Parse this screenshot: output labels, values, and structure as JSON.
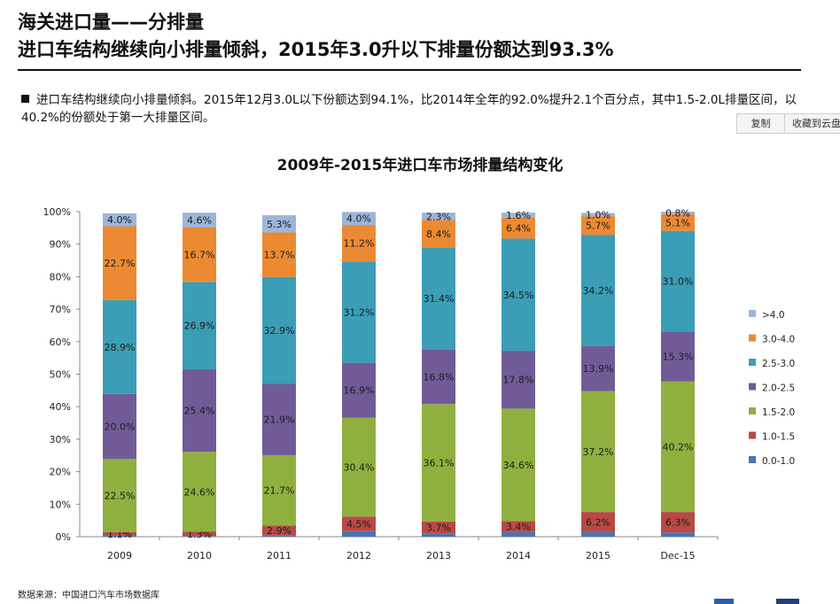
{
  "header": {
    "title_line1": "海关进口量——分排量",
    "title_line2": "进口车结构继续向小排量倾斜，2015年3.0升以下排量份额达到93.3%"
  },
  "bullet": {
    "text": "进口车结构继续向小排量倾斜。2015年12月3.0L以下份额达到94.1%，比2014年全年的92.0%提升2.1个百分点，其中1.5-2.0L排量区间，以40.2%的份额处于第一大排量区间。"
  },
  "buttons": {
    "copy": "复制",
    "favorite": "收藏到云盘"
  },
  "source": "数据来源：中国进口汽车市场数据库",
  "colors": {
    "0.0-1.0": "#4a74b4",
    "1.0-1.5": "#b94945",
    "1.5-2.0": "#8fb03f",
    "2.0-2.5": "#715b97",
    "2.5-3.0": "#3b9db6",
    "3.0-4.0": "#ec8a33",
    ">4.0": "#9cb6d9"
  },
  "chart_data": {
    "type": "bar",
    "stacked": true,
    "title": "2009年-2015年进口车市场排量结构变化",
    "categories": [
      "2009",
      "2010",
      "2011",
      "2012",
      "2013",
      "2014",
      "2015",
      "Dec-15"
    ],
    "yticks": [
      "0%",
      "10%",
      "20%",
      "30%",
      "40%",
      "50%",
      "60%",
      "70%",
      "80%",
      "90%",
      "100%"
    ],
    "ylim": [
      0,
      100
    ],
    "legend_position": "right",
    "series": [
      {
        "name": "0.0-1.0",
        "values": [
          0.3,
          0.2,
          0.5,
          1.7,
          1.0,
          1.4,
          1.4,
          1.3
        ],
        "labels": [
          "",
          "",
          "",
          "",
          "",
          "",
          "",
          ""
        ]
      },
      {
        "name": "1.0-1.5",
        "values": [
          1.1,
          1.3,
          2.9,
          4.5,
          3.7,
          3.4,
          6.2,
          6.3
        ],
        "labels": [
          "1.1%",
          "1.3%",
          "2.9%",
          "4.5%",
          "3.7%",
          "3.4%",
          "6.2%",
          "6.3%"
        ]
      },
      {
        "name": "1.5-2.0",
        "values": [
          22.5,
          24.6,
          21.7,
          30.4,
          36.1,
          34.6,
          37.2,
          40.2
        ],
        "labels": [
          "22.5%",
          "24.6%",
          "21.7%",
          "30.4%",
          "36.1%",
          "34.6%",
          "37.2%",
          "40.2%"
        ]
      },
      {
        "name": "2.0-2.5",
        "values": [
          20.0,
          25.4,
          21.9,
          16.9,
          16.8,
          17.8,
          13.9,
          15.3
        ],
        "labels": [
          "20.0%",
          "25.4%",
          "21.9%",
          "16.9%",
          "16.8%",
          "17.8%",
          "13.9%",
          "15.3%"
        ]
      },
      {
        "name": "2.5-3.0",
        "values": [
          28.9,
          26.9,
          32.9,
          31.2,
          31.4,
          34.5,
          34.2,
          31.0
        ],
        "labels": [
          "28.9%",
          "26.9%",
          "32.9%",
          "31.2%",
          "31.4%",
          "34.5%",
          "34.2%",
          "31.0%"
        ]
      },
      {
        "name": "3.0-4.0",
        "values": [
          22.7,
          16.7,
          13.7,
          11.2,
          8.4,
          6.4,
          5.7,
          5.1
        ],
        "labels": [
          "22.7%",
          "16.7%",
          "13.7%",
          "11.2%",
          "8.4%",
          "6.4%",
          "5.7%",
          "5.1%"
        ]
      },
      {
        "name": ">4.0",
        "values": [
          4.0,
          4.6,
          5.3,
          4.0,
          2.3,
          1.6,
          1.0,
          0.8
        ],
        "labels": [
          "4.0%",
          "4.6%",
          "5.3%",
          "4.0%",
          "2.3%",
          "1.6%",
          "1.0%",
          "0.8%"
        ]
      }
    ],
    "legend_order": [
      ">4.0",
      "3.0-4.0",
      "2.5-3.0",
      "2.0-2.5",
      "1.5-2.0",
      "1.0-1.5",
      "0.0-1.0"
    ]
  }
}
